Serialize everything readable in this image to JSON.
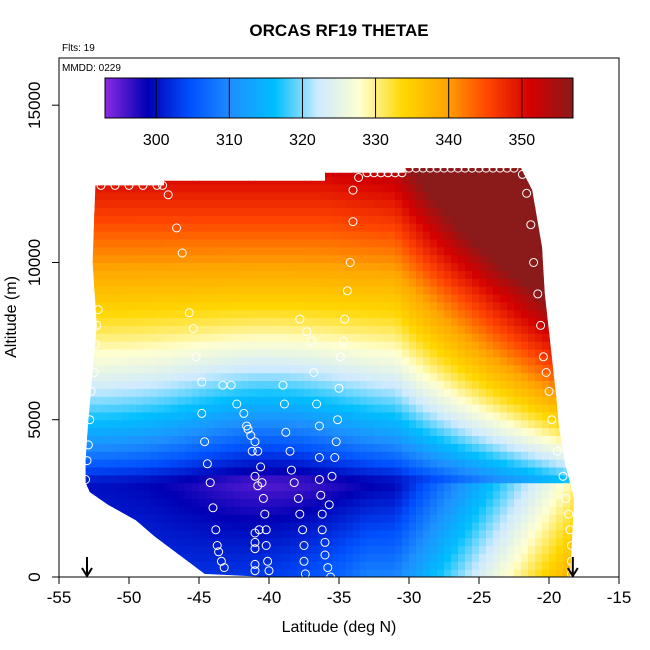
{
  "chart_data": {
    "type": "heatmap",
    "title": "ORCAS RF19 THETAE",
    "annotations": {
      "flights": "Flts: 19",
      "date": "MMDD: 0229"
    },
    "xlabel": "Latitude (deg N)",
    "ylabel": "Altitude (m)",
    "xlim": [
      -55,
      -15
    ],
    "ylim": [
      0,
      16500
    ],
    "x_ticks": [
      -55,
      -50,
      -45,
      -40,
      -35,
      -30,
      -25,
      -20,
      -15
    ],
    "y_ticks": [
      0,
      5000,
      10000,
      15000
    ],
    "colorbar": {
      "min": 293,
      "max": 357,
      "ticks": [
        300,
        310,
        320,
        330,
        340,
        350
      ],
      "colors": [
        "#8a2be2",
        "#0000b4",
        "#0050ff",
        "#1e90ff",
        "#00bfff",
        "#cdeaff",
        "#ffffd0",
        "#ffd700",
        "#ffa500",
        "#ff4500",
        "#d40000",
        "#8b1a1a"
      ]
    },
    "field_domain": {
      "top_boundary": [
        [
          -52.4,
          12450
        ],
        [
          -47.5,
          12450
        ],
        [
          -47.5,
          12600
        ],
        [
          -43.4,
          12600
        ],
        [
          -36,
          12600
        ],
        [
          -36,
          12850
        ],
        [
          -30.3,
          12850
        ],
        [
          -30.3,
          13000
        ],
        [
          -22,
          13000
        ],
        [
          -21.2,
          12300
        ],
        [
          -20.5,
          10500
        ],
        [
          -20.3,
          9000
        ],
        [
          -19.8,
          7000
        ],
        [
          -19.5,
          5800
        ],
        [
          -19.3,
          4800
        ],
        [
          -18.8,
          3500
        ],
        [
          -18.2,
          2500
        ],
        [
          -18.5,
          0
        ]
      ],
      "bottom_boundary": [
        [
          -53.1,
          3000
        ],
        [
          -52.8,
          2700
        ],
        [
          -51.5,
          2300
        ],
        [
          -49.5,
          1800
        ],
        [
          -48.2,
          1300
        ],
        [
          -47,
          900
        ],
        [
          -45.8,
          500
        ],
        [
          -44.6,
          100
        ],
        [
          -40,
          0
        ],
        [
          -30,
          0
        ],
        [
          -18.5,
          0
        ]
      ],
      "left_boundary": [
        [
          -52.4,
          12450
        ],
        [
          -52.6,
          10000
        ],
        [
          -52.3,
          8000
        ],
        [
          -52.6,
          6500
        ],
        [
          -52.9,
          5000
        ],
        [
          -53.1,
          3700
        ],
        [
          -53.1,
          3000
        ]
      ]
    },
    "flight_track": [
      [
        -53.1,
        3100
      ],
      [
        -53.0,
        3700
      ],
      [
        -52.9,
        4200
      ],
      [
        -52.8,
        5000
      ],
      [
        -52.7,
        5900
      ],
      [
        -52.5,
        6500
      ],
      [
        -52.4,
        7400
      ],
      [
        -52.3,
        8000
      ],
      [
        -52.2,
        8500
      ],
      [
        -52.0,
        12450
      ],
      [
        -51,
        12450
      ],
      [
        -50,
        12450
      ],
      [
        -49,
        12450
      ],
      [
        -48,
        12450
      ],
      [
        -47.6,
        12450
      ],
      [
        -47.2,
        12150
      ],
      [
        -46.6,
        11100
      ],
      [
        -46.2,
        10300
      ],
      [
        -45.7,
        8400
      ],
      [
        -45.4,
        7900
      ],
      [
        -45.2,
        7000
      ],
      [
        -44.8,
        6200
      ],
      [
        -44.8,
        5200
      ],
      [
        -44.6,
        4300
      ],
      [
        -44.4,
        3600
      ],
      [
        -44.2,
        3000
      ],
      [
        -44.0,
        2200
      ],
      [
        -43.8,
        1500
      ],
      [
        -43.7,
        1000
      ],
      [
        -43.6,
        800
      ],
      [
        -43.4,
        500
      ],
      [
        -43.2,
        300
      ],
      [
        -43.3,
        6100
      ],
      [
        -42.7,
        6100
      ],
      [
        -42.3,
        5500
      ],
      [
        -41.8,
        5200
      ],
      [
        -41.6,
        4800
      ],
      [
        -41.3,
        4500
      ],
      [
        -41.0,
        4300
      ],
      [
        -40.8,
        4000
      ],
      [
        -40.6,
        3500
      ],
      [
        -40.5,
        3000
      ],
      [
        -40.4,
        2500
      ],
      [
        -40.3,
        2000
      ],
      [
        -40.2,
        1500
      ],
      [
        -40.2,
        1000
      ],
      [
        -40.1,
        500
      ],
      [
        -40.0,
        200
      ],
      [
        -41.5,
        4700
      ],
      [
        -41.2,
        4000
      ],
      [
        -41.0,
        3200
      ],
      [
        -40.8,
        2900
      ],
      [
        -40.7,
        1500
      ],
      [
        -41.0,
        1400
      ],
      [
        -41.0,
        1100
      ],
      [
        -41.0,
        900
      ],
      [
        -41.0,
        400
      ],
      [
        -41.0,
        200
      ],
      [
        -39.0,
        6100
      ],
      [
        -38.9,
        5500
      ],
      [
        -38.8,
        4600
      ],
      [
        -38.5,
        4000
      ],
      [
        -38.4,
        3400
      ],
      [
        -38.2,
        3000
      ],
      [
        -37.9,
        2500
      ],
      [
        -37.8,
        2000
      ],
      [
        -37.6,
        1500
      ],
      [
        -37.5,
        1000
      ],
      [
        -37.5,
        500
      ],
      [
        -37.4,
        100
      ],
      [
        -37.8,
        8200
      ],
      [
        -37.3,
        7800
      ],
      [
        -37.0,
        7500
      ],
      [
        -36.8,
        6500
      ],
      [
        -36.6,
        5500
      ],
      [
        -36.4,
        4800
      ],
      [
        -36.4,
        3800
      ],
      [
        -36.4,
        3100
      ],
      [
        -36.3,
        2600
      ],
      [
        -36.2,
        2000
      ],
      [
        -36.2,
        1500
      ],
      [
        -36.0,
        1100
      ],
      [
        -36.0,
        700
      ],
      [
        -35.8,
        300
      ],
      [
        -35.6,
        0
      ],
      [
        -35.7,
        2300
      ],
      [
        -35.5,
        3200
      ],
      [
        -35.3,
        3800
      ],
      [
        -35.2,
        4300
      ],
      [
        -35.1,
        5000
      ],
      [
        -35.0,
        6000
      ],
      [
        -34.9,
        7000
      ],
      [
        -34.7,
        7500
      ],
      [
        -34.6,
        8200
      ],
      [
        -34.4,
        9100
      ],
      [
        -34.2,
        10000
      ],
      [
        -34.0,
        11300
      ],
      [
        -34.0,
        12300
      ],
      [
        -33.6,
        12700
      ],
      [
        -33,
        12850
      ],
      [
        -32.5,
        12850
      ],
      [
        -32,
        12850
      ],
      [
        -31.5,
        12850
      ],
      [
        -31,
        12850
      ],
      [
        -30.5,
        12850
      ],
      [
        -30,
        13000
      ],
      [
        -29.5,
        13000
      ],
      [
        -29,
        13000
      ],
      [
        -28.5,
        13000
      ],
      [
        -28,
        13000
      ],
      [
        -27.5,
        13000
      ],
      [
        -27,
        13000
      ],
      [
        -26.5,
        13000
      ],
      [
        -26,
        13000
      ],
      [
        -25.5,
        13000
      ],
      [
        -25,
        13000
      ],
      [
        -24.5,
        13000
      ],
      [
        -24,
        13000
      ],
      [
        -23.5,
        13000
      ],
      [
        -23,
        13000
      ],
      [
        -22.5,
        13000
      ],
      [
        -21.9,
        12800
      ],
      [
        -21.6,
        12200
      ],
      [
        -21.3,
        11200
      ],
      [
        -21.1,
        10000
      ],
      [
        -20.8,
        9000
      ],
      [
        -20.6,
        8000
      ],
      [
        -20.4,
        7000
      ],
      [
        -20.2,
        6500
      ],
      [
        -20.0,
        5900
      ],
      [
        -19.8,
        5000
      ],
      [
        -19.4,
        4000
      ],
      [
        -19.0,
        3200
      ],
      [
        -18.8,
        2500
      ],
      [
        -18.6,
        2000
      ],
      [
        -18.5,
        1500
      ],
      [
        -18.4,
        1000
      ],
      [
        -18.4,
        500
      ],
      [
        -18.4,
        100
      ]
    ],
    "markers": [
      {
        "x": -53,
        "label": "start-arrow"
      },
      {
        "x": -18.3,
        "label": "end-arrow"
      }
    ]
  }
}
